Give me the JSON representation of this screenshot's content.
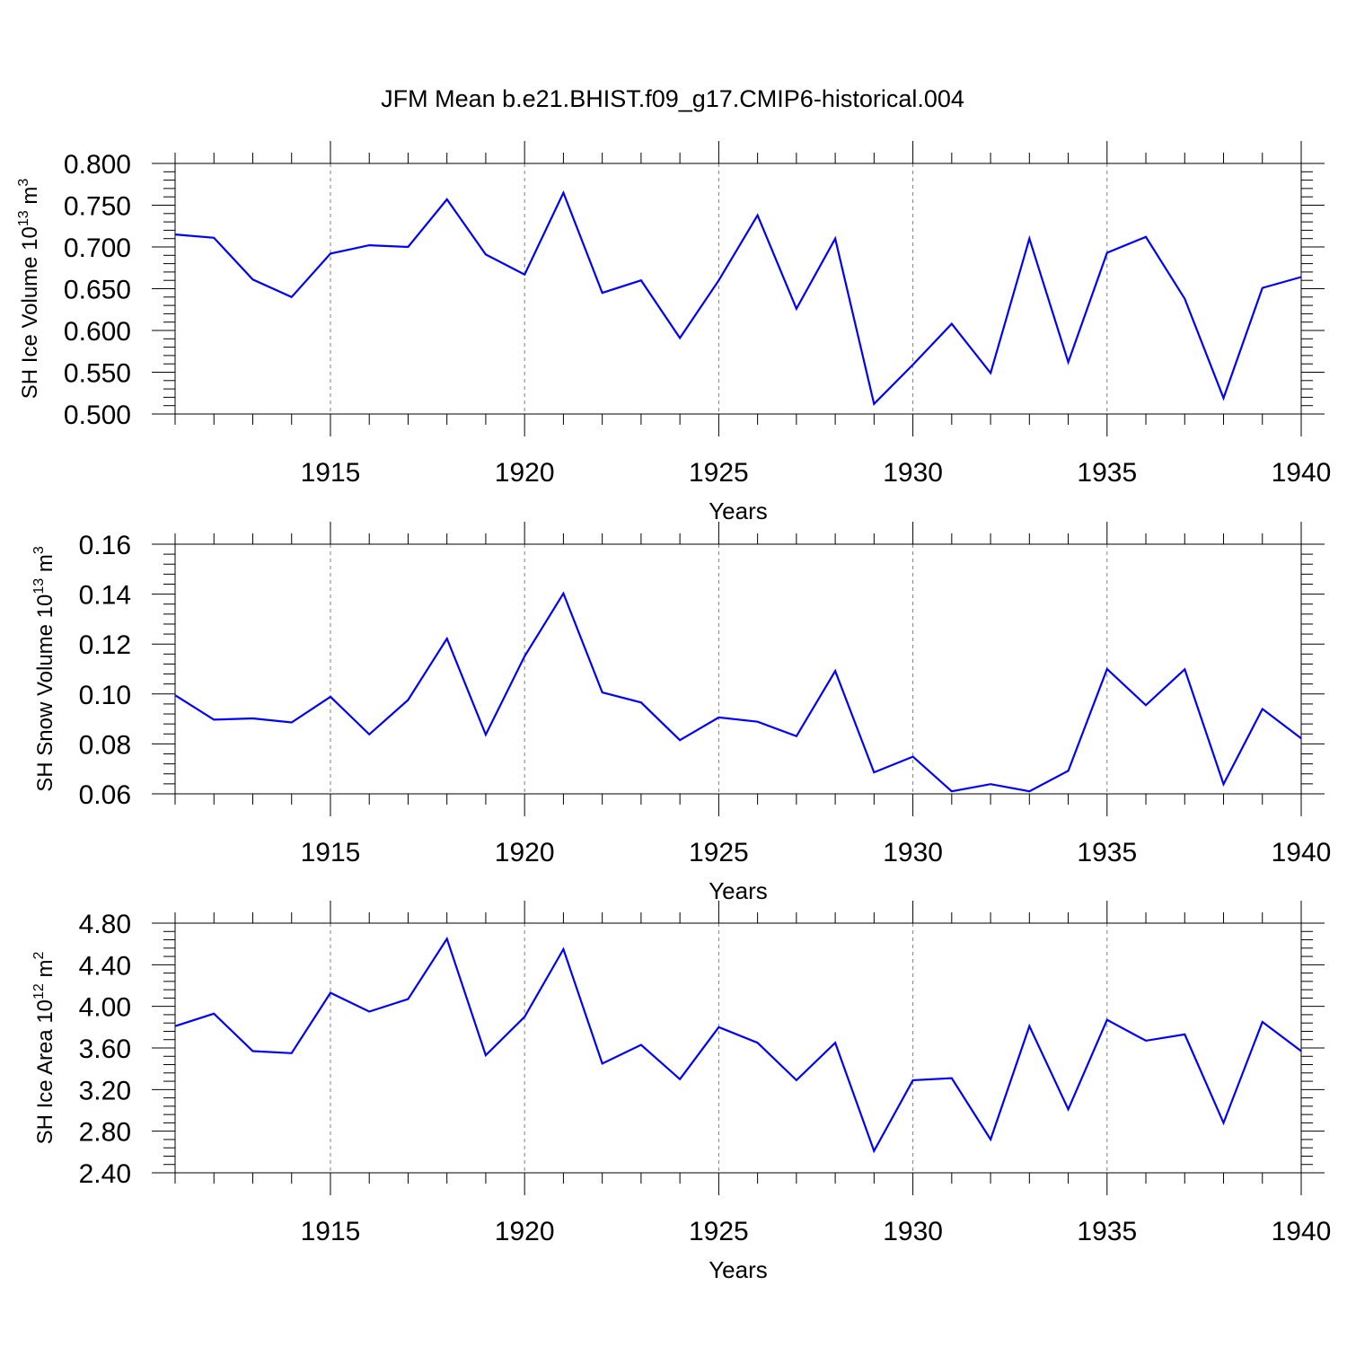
{
  "title": "JFM Mean b.e21.BHIST.f09_g17.CMIP6-historical.004",
  "line_color": "#0000ff",
  "chart_data": [
    {
      "type": "line",
      "xlabel": "Years",
      "ylabel": {
        "text": "SH Ice Volume 10",
        "exp": "13",
        "unit": " m",
        "unit_exp": "3"
      },
      "xlim": [
        1911,
        1940
      ],
      "ylim": [
        0.5,
        0.8
      ],
      "xticks": [
        1915,
        1920,
        1925,
        1930,
        1935,
        1940
      ],
      "yticks": [
        "0.500",
        "0.550",
        "0.600",
        "0.650",
        "0.700",
        "0.750",
        "0.800"
      ],
      "grid": "vertical dashed at major x ticks",
      "x": [
        1911,
        1912,
        1913,
        1914,
        1915,
        1916,
        1917,
        1918,
        1919,
        1920,
        1921,
        1922,
        1923,
        1924,
        1925,
        1926,
        1927,
        1928,
        1929,
        1930,
        1931,
        1932,
        1933,
        1934,
        1935,
        1936,
        1937,
        1938,
        1939,
        1940
      ],
      "series": [
        {
          "values": [
            0.715,
            0.711,
            0.661,
            0.64,
            0.692,
            0.702,
            0.7,
            0.757,
            0.691,
            0.667,
            0.765,
            0.645,
            0.66,
            0.591,
            0.66,
            0.738,
            0.626,
            0.71,
            0.512,
            0.559,
            0.608,
            0.549,
            0.71,
            0.562,
            0.693,
            0.712,
            0.638,
            0.519,
            0.651,
            0.664
          ]
        }
      ]
    },
    {
      "type": "line",
      "xlabel": "Years",
      "ylabel": {
        "text": "SH Snow Volume 10",
        "exp": "13",
        "unit": " m",
        "unit_exp": "3"
      },
      "xlim": [
        1911,
        1940
      ],
      "ylim": [
        0.06,
        0.16
      ],
      "xticks": [
        1915,
        1920,
        1925,
        1930,
        1935,
        1940
      ],
      "yticks": [
        "0.06",
        "0.08",
        "0.10",
        "0.12",
        "0.14",
        "0.16"
      ],
      "grid": "vertical dashed at major x ticks",
      "x": [
        1911,
        1912,
        1913,
        1914,
        1915,
        1916,
        1917,
        1918,
        1919,
        1920,
        1921,
        1922,
        1923,
        1924,
        1925,
        1926,
        1927,
        1928,
        1929,
        1930,
        1931,
        1932,
        1933,
        1934,
        1935,
        1936,
        1937,
        1938,
        1939,
        1940
      ],
      "series": [
        {
          "values": [
            0.0995,
            0.0897,
            0.0902,
            0.0886,
            0.0989,
            0.0838,
            0.0976,
            0.1222,
            0.0837,
            0.1151,
            0.1403,
            0.1006,
            0.0966,
            0.0815,
            0.0906,
            0.0889,
            0.0831,
            0.1092,
            0.0686,
            0.0749,
            0.061,
            0.0639,
            0.061,
            0.0692,
            0.11,
            0.0955,
            0.1099,
            0.0639,
            0.094,
            0.0822
          ]
        }
      ]
    },
    {
      "type": "line",
      "xlabel": "Years",
      "ylabel": {
        "text": "SH Ice Area 10",
        "exp": "12",
        "unit": " m",
        "unit_exp": "2"
      },
      "xlim": [
        1911,
        1940
      ],
      "ylim": [
        2.4,
        4.8
      ],
      "xticks": [
        1915,
        1920,
        1925,
        1930,
        1935,
        1940
      ],
      "yticks": [
        "2.40",
        "2.80",
        "3.20",
        "3.60",
        "4.00",
        "4.40",
        "4.80"
      ],
      "grid": "vertical dashed at major x ticks",
      "x": [
        1911,
        1912,
        1913,
        1914,
        1915,
        1916,
        1917,
        1918,
        1919,
        1920,
        1921,
        1922,
        1923,
        1924,
        1925,
        1926,
        1927,
        1928,
        1929,
        1930,
        1931,
        1932,
        1933,
        1934,
        1935,
        1936,
        1937,
        1938,
        1939,
        1940
      ],
      "series": [
        {
          "values": [
            3.81,
            3.93,
            3.57,
            3.55,
            4.13,
            3.95,
            4.07,
            4.65,
            3.53,
            3.9,
            4.55,
            3.45,
            3.63,
            3.3,
            3.8,
            3.65,
            3.29,
            3.65,
            2.61,
            3.29,
            3.31,
            2.72,
            3.81,
            3.01,
            3.87,
            3.67,
            3.73,
            2.88,
            3.85,
            3.57
          ]
        }
      ]
    }
  ]
}
